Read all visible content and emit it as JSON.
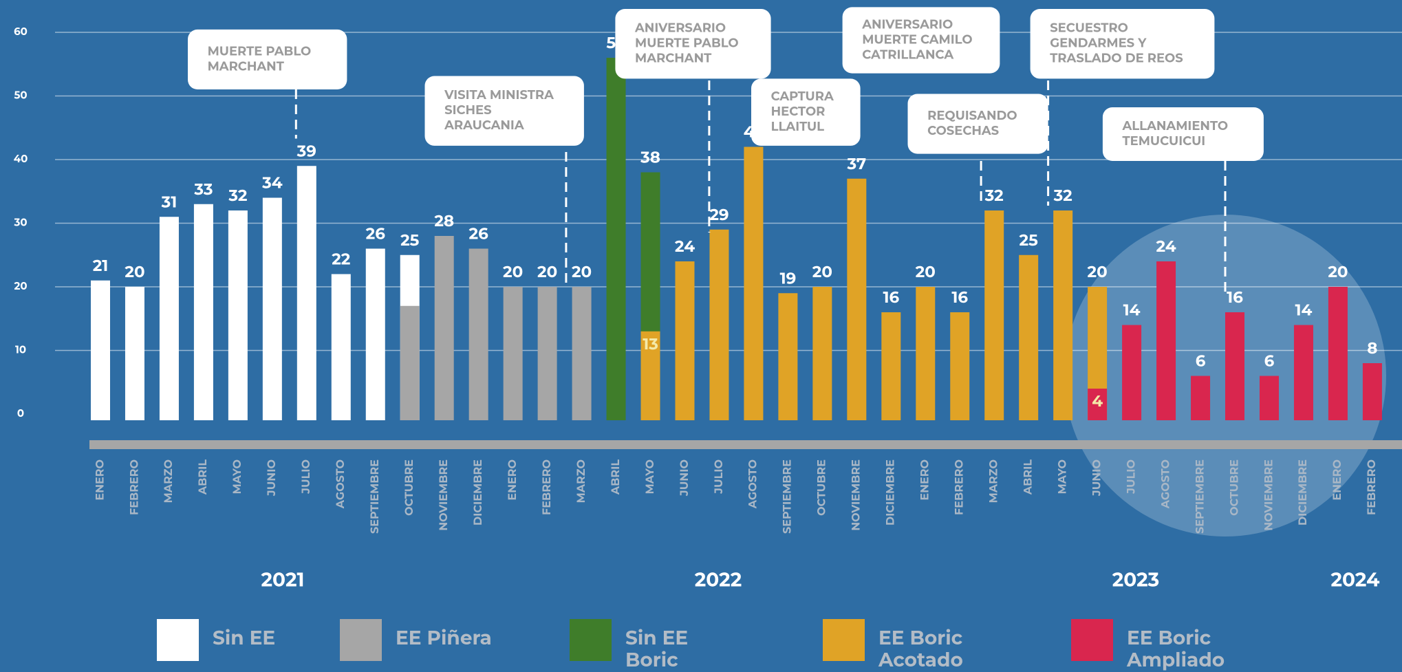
{
  "chart_data": {
    "type": "bar",
    "categories": [
      "ENERO",
      "FEBRERO",
      "MARZO",
      "ABRIL",
      "MAYO",
      "JUNIO",
      "JULIO",
      "AGOSTO",
      "SEPTIEMBRE",
      "OCTUBRE",
      "NOVIEMBRE",
      "DICIEMBRE",
      "ENERO",
      "FEBRERO",
      "MARZO",
      "ABRIL",
      "MAYO",
      "JUNIO",
      "JULIO",
      "AGOSTO",
      "SEPTIEMBRE",
      "OCTUBRE",
      "NOVIEMBRE",
      "DICIEMBRE",
      "ENERO",
      "FEBRERO",
      "MARZO",
      "ABRIL",
      "MAYO",
      "JUNIO",
      "JULIO",
      "AGOSTO",
      "SEPTIEMBRE",
      "OCTUBRE",
      "NOVIEMBRE",
      "DICIEMBRE",
      "ENERO",
      "FEBRERO"
    ],
    "years": [
      "2021",
      "2022",
      "2023",
      "2024"
    ],
    "series": [
      {
        "name": "Sin EE",
        "color": "#ffffff",
        "values": [
          21,
          20,
          31,
          33,
          32,
          34,
          39,
          22,
          26,
          25,
          null,
          null,
          null,
          null,
          null,
          null,
          null,
          null,
          null,
          null,
          null,
          null,
          null,
          null,
          null,
          null,
          null,
          null,
          null,
          null,
          null,
          null,
          null,
          null,
          null,
          null,
          null,
          null
        ]
      },
      {
        "name": "EE Piñera",
        "color": "#a6a6a6",
        "values": [
          null,
          null,
          null,
          null,
          null,
          null,
          null,
          null,
          null,
          17,
          28,
          26,
          20,
          20,
          20,
          null,
          null,
          null,
          null,
          null,
          null,
          null,
          null,
          null,
          null,
          null,
          null,
          null,
          null,
          null,
          null,
          null,
          null,
          null,
          null,
          null,
          null,
          null
        ],
        "value_labels": [
          null,
          null,
          null,
          null,
          null,
          null,
          null,
          null,
          null,
          null,
          "28",
          "26",
          "20",
          "20",
          "20",
          null,
          null,
          null,
          null,
          null,
          null,
          null,
          null,
          null,
          null,
          null,
          null,
          null,
          null,
          null,
          null,
          null,
          null,
          null,
          null,
          null,
          null,
          null
        ]
      },
      {
        "name": "Sin EE Boric",
        "color": "#3f7d2a",
        "values": [
          null,
          null,
          null,
          null,
          null,
          null,
          null,
          null,
          null,
          null,
          null,
          null,
          null,
          null,
          null,
          56,
          38,
          null,
          null,
          null,
          null,
          null,
          null,
          null,
          null,
          null,
          null,
          null,
          null,
          null,
          null,
          null,
          null,
          null,
          null,
          null,
          null,
          null
        ]
      },
      {
        "name": "EE Boric Acotado",
        "color": "#e0a326",
        "values": [
          null,
          null,
          null,
          null,
          null,
          null,
          null,
          null,
          null,
          null,
          null,
          null,
          null,
          null,
          null,
          null,
          13,
          24,
          29,
          42,
          19,
          20,
          37,
          16,
          20,
          16,
          32,
          25,
          32,
          20,
          null,
          null,
          null,
          null,
          null,
          null,
          null,
          null
        ]
      },
      {
        "name": "EE Boric Ampliado",
        "color": "#d9264e",
        "values": [
          null,
          null,
          null,
          null,
          null,
          null,
          null,
          null,
          null,
          null,
          null,
          null,
          null,
          null,
          null,
          null,
          null,
          null,
          null,
          null,
          null,
          null,
          null,
          null,
          null,
          null,
          null,
          null,
          null,
          4,
          14,
          24,
          6,
          16,
          6,
          14,
          20,
          8
        ]
      }
    ],
    "annotations": [
      {
        "lines": [
          "MUERTE PABLO",
          "MARCHANT"
        ]
      },
      {
        "lines": [
          "VISITA MINISTRA",
          "SICHES",
          "ARAUCANIA"
        ]
      },
      {
        "lines": [
          "ANIVERSARIO",
          "MUERTE PABLO",
          "MARCHANT"
        ]
      },
      {
        "lines": [
          "CAPTURA",
          "HECTOR",
          "LLAITUL"
        ]
      },
      {
        "lines": [
          "ANIVERSARIO",
          "MUERTE CAMILO",
          "CATRILLANCA"
        ]
      },
      {
        "lines": [
          "REQUISANDO",
          "COSECHAS"
        ]
      },
      {
        "lines": [
          "SECUESTRO",
          "GENDARMES Y",
          "TRASLADO DE REOS"
        ]
      },
      {
        "lines": [
          "ALLANAMIENTO",
          "TEMUCUICUI"
        ]
      }
    ],
    "ylim": [
      0,
      60
    ],
    "yticks": [
      0,
      10,
      20,
      30,
      40,
      50,
      60
    ],
    "grid": true
  }
}
